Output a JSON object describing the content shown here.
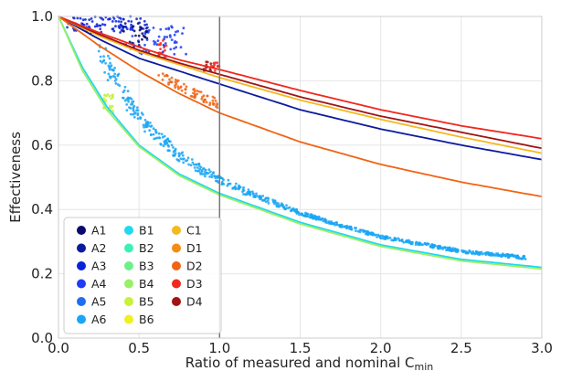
{
  "chart_data": {
    "type": "line",
    "xlabel": "Ratio of measured and nominal C",
    "xlabel_sub": "min",
    "ylabel": "Effectiveness",
    "xlim": [
      0.0,
      3.0
    ],
    "ylim": [
      0.0,
      1.0
    ],
    "xticks": [
      0.0,
      0.5,
      1.0,
      1.5,
      2.0,
      2.5,
      3.0
    ],
    "yticks": [
      0.0,
      0.2,
      0.4,
      0.6,
      0.8,
      1.0
    ],
    "xtick_labels": [
      "0.0",
      "0.5",
      "1.0",
      "1.5",
      "2.0",
      "2.5",
      "3.0"
    ],
    "ytick_labels": [
      "0.0",
      "0.2",
      "0.4",
      "0.6",
      "0.8",
      "1.0"
    ],
    "grid": true,
    "legend_position": "bottom-left",
    "reference_line_x": 1.0,
    "series": [
      {
        "name": "A1",
        "color": "#0a0a6e"
      },
      {
        "name": "A2",
        "color": "#0d1a9e"
      },
      {
        "name": "A3",
        "color": "#0a22d8"
      },
      {
        "name": "A4",
        "color": "#1e3cf5"
      },
      {
        "name": "A5",
        "color": "#1e6ef0"
      },
      {
        "name": "A6",
        "color": "#1aa6f5"
      },
      {
        "name": "B1",
        "color": "#22d8f0"
      },
      {
        "name": "B2",
        "color": "#3ef0b8"
      },
      {
        "name": "B3",
        "color": "#6cf08c"
      },
      {
        "name": "B4",
        "color": "#98f064"
      },
      {
        "name": "B5",
        "color": "#c8f03c"
      },
      {
        "name": "B6",
        "color": "#f0f01e"
      },
      {
        "name": "C1",
        "color": "#f5b81e"
      },
      {
        "name": "D1",
        "color": "#f58c14"
      },
      {
        "name": "D2",
        "color": "#f06414"
      },
      {
        "name": "D3",
        "color": "#f0281e"
      },
      {
        "name": "D4",
        "color": "#a01414"
      }
    ],
    "curves": [
      {
        "color": "#0d1a9e",
        "x": [
          0.0,
          0.25,
          0.5,
          0.75,
          1.0,
          1.5,
          2.0,
          2.5,
          3.0
        ],
        "y": [
          1.0,
          0.93,
          0.87,
          0.83,
          0.79,
          0.71,
          0.65,
          0.6,
          0.555
        ]
      },
      {
        "color": "#f5b81e",
        "x": [
          0.0,
          0.25,
          0.5,
          0.75,
          1.0,
          1.5,
          2.0,
          2.5,
          3.0
        ],
        "y": [
          1.0,
          0.94,
          0.89,
          0.85,
          0.81,
          0.74,
          0.68,
          0.625,
          0.575
        ]
      },
      {
        "color": "#a01414",
        "x": [
          0.0,
          0.25,
          0.5,
          0.75,
          1.0,
          1.5,
          2.0,
          2.5,
          3.0
        ],
        "y": [
          1.0,
          0.945,
          0.895,
          0.855,
          0.82,
          0.75,
          0.69,
          0.64,
          0.59
        ]
      },
      {
        "color": "#f0281e",
        "x": [
          0.0,
          0.25,
          0.5,
          0.75,
          1.0,
          1.5,
          2.0,
          2.5,
          3.0
        ],
        "y": [
          1.0,
          0.95,
          0.905,
          0.865,
          0.835,
          0.77,
          0.71,
          0.66,
          0.62
        ]
      },
      {
        "color": "#f06414",
        "x": [
          0.0,
          0.25,
          0.5,
          0.75,
          1.0,
          1.5,
          2.0,
          2.5,
          3.0
        ],
        "y": [
          1.0,
          0.91,
          0.83,
          0.76,
          0.7,
          0.61,
          0.54,
          0.485,
          0.44
        ]
      },
      {
        "color": "#22d8f0",
        "x": [
          0.0,
          0.15,
          0.3,
          0.5,
          0.75,
          1.0,
          1.5,
          2.0,
          2.5,
          3.0
        ],
        "y": [
          1.0,
          0.84,
          0.72,
          0.6,
          0.51,
          0.45,
          0.36,
          0.29,
          0.245,
          0.22
        ]
      },
      {
        "color": "#98f064",
        "x": [
          0.0,
          0.15,
          0.3,
          0.5,
          0.75,
          1.0,
          1.5,
          2.0,
          2.5,
          3.0
        ],
        "y": [
          1.0,
          0.83,
          0.71,
          0.595,
          0.505,
          0.445,
          0.355,
          0.285,
          0.24,
          0.215
        ]
      }
    ],
    "scatter_clusters": [
      {
        "color": "#0a22d8",
        "x_range": [
          0.05,
          0.55
        ],
        "y_range": [
          0.95,
          1.0
        ],
        "count": 90
      },
      {
        "color": "#1e3cf5",
        "x_range": [
          0.45,
          0.8
        ],
        "y_range": [
          0.88,
          0.97
        ],
        "count": 60
      },
      {
        "color": "#0a0a6e",
        "x_range": [
          0.4,
          0.55
        ],
        "y_range": [
          0.9,
          0.98
        ],
        "count": 30
      },
      {
        "color": "#f0281e",
        "x_range": [
          0.62,
          0.68
        ],
        "y_range": [
          0.87,
          0.93
        ],
        "count": 15
      },
      {
        "color": "#a01414",
        "x_range": [
          0.9,
          0.95
        ],
        "y_range": [
          0.83,
          0.86
        ],
        "count": 12
      },
      {
        "color": "#f0281e",
        "x_range": [
          0.94,
          1.0
        ],
        "y_range": [
          0.83,
          0.86
        ],
        "count": 12
      },
      {
        "color": "#f06414",
        "x_range": [
          0.62,
          1.0
        ],
        "y_range": [
          0.7,
          0.8
        ],
        "count": 70,
        "band": "D2"
      },
      {
        "color": "#1aa6f5",
        "x_range": [
          0.25,
          2.9
        ],
        "y_range": [
          0.22,
          0.94
        ],
        "count": 700,
        "band": "A6"
      },
      {
        "color": "#c8f03c",
        "x_range": [
          0.28,
          0.34
        ],
        "y_range": [
          0.7,
          0.76
        ],
        "count": 25
      }
    ]
  }
}
